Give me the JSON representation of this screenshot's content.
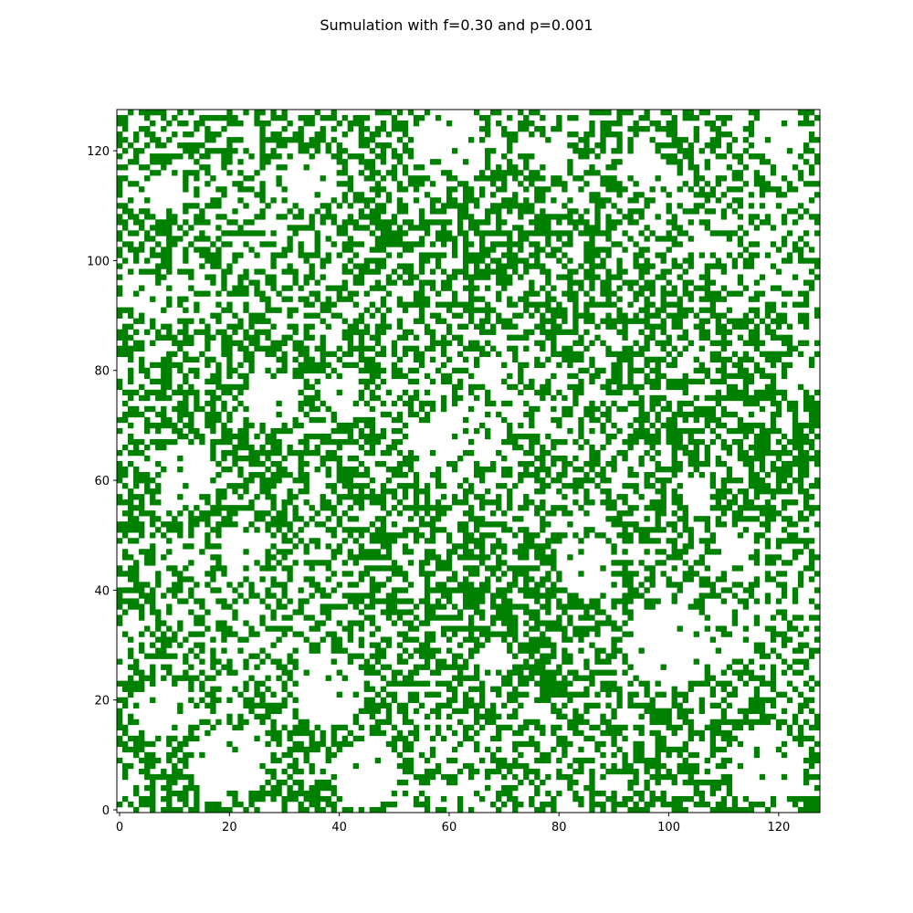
{
  "chart_data": {
    "type": "heatmap",
    "title": "Sumulation with f=0.30 and p=0.001",
    "xlabel": "",
    "ylabel": "",
    "grid_size": 128,
    "xlim": [
      -0.5,
      127.5
    ],
    "ylim": [
      -0.5,
      127.5
    ],
    "xticks": [
      0,
      20,
      40,
      60,
      80,
      100,
      120
    ],
    "yticks": [
      0,
      20,
      40,
      60,
      80,
      100,
      120
    ],
    "cell_states": [
      "empty",
      "tree"
    ],
    "colors": {
      "empty": "#ffffff",
      "tree": "#008000"
    },
    "grid": false,
    "legend": "none",
    "tree_density_estimate": 0.45,
    "empty_patches": [
      {
        "x": 8,
        "y": 112,
        "r": 4
      },
      {
        "x": 35,
        "y": 115,
        "r": 5
      },
      {
        "x": 60,
        "y": 121,
        "r": 7
      },
      {
        "x": 78,
        "y": 120,
        "r": 4
      },
      {
        "x": 95,
        "y": 117,
        "r": 4
      },
      {
        "x": 120,
        "y": 123,
        "r": 5
      },
      {
        "x": 5,
        "y": 94,
        "r": 4
      },
      {
        "x": 105,
        "y": 104,
        "r": 3
      },
      {
        "x": 123,
        "y": 97,
        "r": 3
      },
      {
        "x": 28,
        "y": 75,
        "r": 5
      },
      {
        "x": 40,
        "y": 77,
        "r": 4
      },
      {
        "x": 58,
        "y": 68,
        "r": 5
      },
      {
        "x": 125,
        "y": 80,
        "r": 3
      },
      {
        "x": 12,
        "y": 62,
        "r": 5
      },
      {
        "x": 22,
        "y": 48,
        "r": 4
      },
      {
        "x": 8,
        "y": 18,
        "r": 5
      },
      {
        "x": 20,
        "y": 8,
        "r": 7
      },
      {
        "x": 38,
        "y": 22,
        "r": 7
      },
      {
        "x": 45,
        "y": 7,
        "r": 6
      },
      {
        "x": 100,
        "y": 30,
        "r": 8
      },
      {
        "x": 85,
        "y": 44,
        "r": 5
      },
      {
        "x": 118,
        "y": 8,
        "r": 7
      },
      {
        "x": 112,
        "y": 48,
        "r": 3
      },
      {
        "x": 105,
        "y": 58,
        "r": 3
      },
      {
        "x": 68,
        "y": 28,
        "r": 3
      }
    ]
  }
}
